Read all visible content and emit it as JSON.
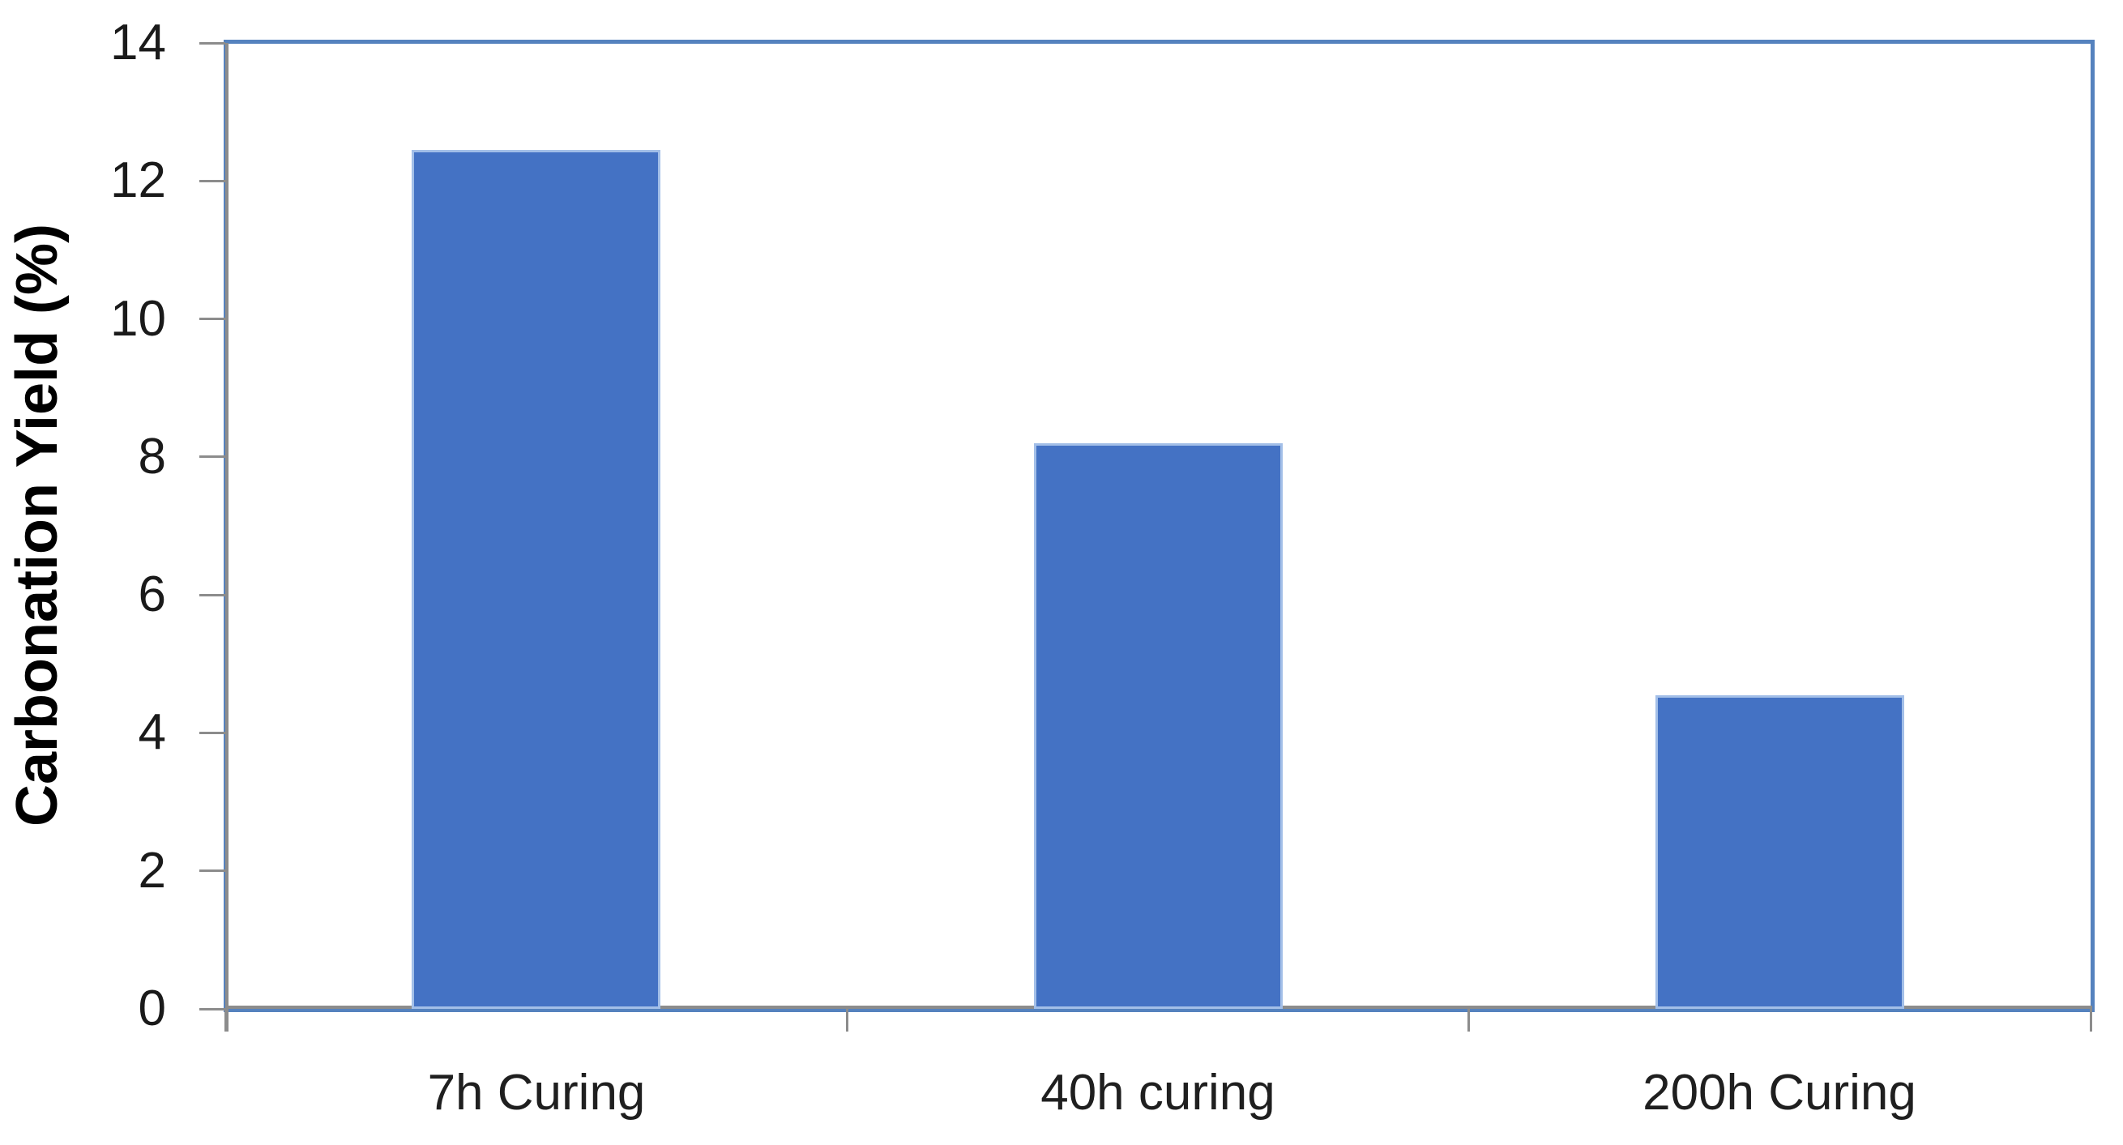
{
  "chart_data": {
    "type": "bar",
    "title": "",
    "categories": [
      "7h Curing",
      "40h curing",
      "200h Curing"
    ],
    "values": [
      12.45,
      8.2,
      4.55
    ],
    "xlabel": "",
    "ylabel": "Carbonation Yield (%)",
    "ylim": [
      0,
      14
    ],
    "yticks": [
      0,
      2,
      4,
      6,
      8,
      10,
      12,
      14
    ],
    "grid": false,
    "legend": false,
    "colors": {
      "bar_fill": "#4472C4",
      "bar_border": "#A3BFE8",
      "plot_frame": "#5582BE",
      "axis_line": "#8C8C8C",
      "tick_mark": "#8C8C8C",
      "tick_label_text": "#1A1A1A",
      "axis_title_text": "#000000",
      "background": "#FFFFFF"
    }
  }
}
